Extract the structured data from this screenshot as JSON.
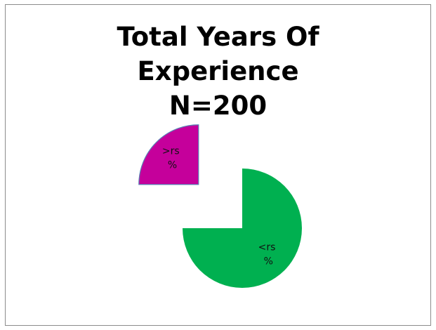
{
  "chart_data": {
    "type": "pie",
    "title_lines": [
      "Total Years Of",
      "Experience",
      "N=200"
    ],
    "slices": [
      {
        "label_line1": ">rs",
        "label_line2": "%",
        "value": 25,
        "color": "#C5009B",
        "exploded": true
      },
      {
        "label_line1": "<rs",
        "label_line2": "%",
        "value": 75,
        "color": "#00B050",
        "exploded": false
      }
    ],
    "legend": "none"
  }
}
